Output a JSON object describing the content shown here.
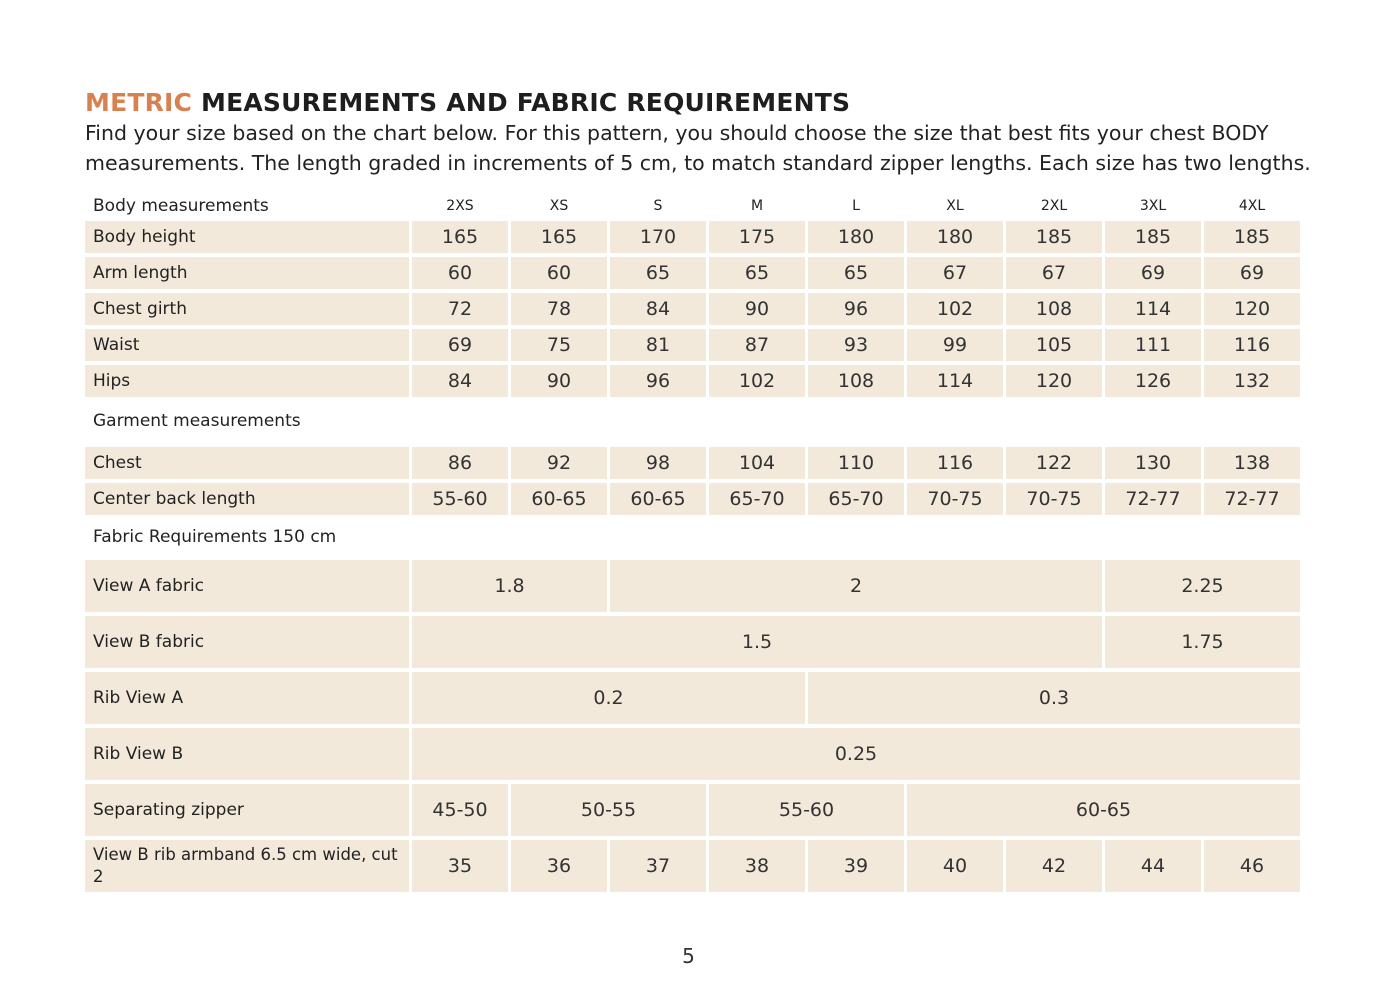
{
  "title": {
    "accent": "METRIC",
    "rest": "MEASUREMENTS AND FABRIC REQUIREMENTS"
  },
  "intro": "Find your size based on the chart below. For this pattern, you should choose the size that best fits your chest BODY measurements. The length graded in increments of 5 cm, to match standard zipper lengths. Each size has two lengths.",
  "colors": {
    "accent": "#d9804f",
    "cell_background": "#f2e9da"
  },
  "sizes": [
    "2XS",
    "XS",
    "S",
    "M",
    "L",
    "XL",
    "2XL",
    "3XL",
    "4XL"
  ],
  "body": {
    "heading": "Body measurements",
    "rows": [
      {
        "label": "Body height",
        "cells": [
          {
            "v": "165",
            "span": 1
          },
          {
            "v": "165",
            "span": 1
          },
          {
            "v": "170",
            "span": 1
          },
          {
            "v": "175",
            "span": 1
          },
          {
            "v": "180",
            "span": 1
          },
          {
            "v": "180",
            "span": 1
          },
          {
            "v": "185",
            "span": 1
          },
          {
            "v": "185",
            "span": 1
          },
          {
            "v": "185",
            "span": 1
          }
        ]
      },
      {
        "label": "Arm length",
        "cells": [
          {
            "v": "60",
            "span": 1
          },
          {
            "v": "60",
            "span": 1
          },
          {
            "v": "65",
            "span": 1
          },
          {
            "v": "65",
            "span": 1
          },
          {
            "v": "65",
            "span": 1
          },
          {
            "v": "67",
            "span": 1
          },
          {
            "v": "67",
            "span": 1
          },
          {
            "v": "69",
            "span": 1
          },
          {
            "v": "69",
            "span": 1
          }
        ]
      },
      {
        "label": "Chest girth",
        "cells": [
          {
            "v": "72",
            "span": 1
          },
          {
            "v": "78",
            "span": 1
          },
          {
            "v": "84",
            "span": 1
          },
          {
            "v": "90",
            "span": 1
          },
          {
            "v": "96",
            "span": 1
          },
          {
            "v": "102",
            "span": 1
          },
          {
            "v": "108",
            "span": 1
          },
          {
            "v": "114",
            "span": 1
          },
          {
            "v": "120",
            "span": 1
          }
        ]
      },
      {
        "label": "Waist",
        "cells": [
          {
            "v": "69",
            "span": 1
          },
          {
            "v": "75",
            "span": 1
          },
          {
            "v": "81",
            "span": 1
          },
          {
            "v": "87",
            "span": 1
          },
          {
            "v": "93",
            "span": 1
          },
          {
            "v": "99",
            "span": 1
          },
          {
            "v": "105",
            "span": 1
          },
          {
            "v": "111",
            "span": 1
          },
          {
            "v": "116",
            "span": 1
          }
        ]
      },
      {
        "label": "Hips",
        "cells": [
          {
            "v": "84",
            "span": 1
          },
          {
            "v": "90",
            "span": 1
          },
          {
            "v": "96",
            "span": 1
          },
          {
            "v": "102",
            "span": 1
          },
          {
            "v": "108",
            "span": 1
          },
          {
            "v": "114",
            "span": 1
          },
          {
            "v": "120",
            "span": 1
          },
          {
            "v": "126",
            "span": 1
          },
          {
            "v": "132",
            "span": 1
          }
        ]
      }
    ]
  },
  "garment": {
    "heading": "Garment measurements",
    "rows": [
      {
        "label": "Chest",
        "cells": [
          {
            "v": "86",
            "span": 1
          },
          {
            "v": "92",
            "span": 1
          },
          {
            "v": "98",
            "span": 1
          },
          {
            "v": "104",
            "span": 1
          },
          {
            "v": "110",
            "span": 1
          },
          {
            "v": "116",
            "span": 1
          },
          {
            "v": "122",
            "span": 1
          },
          {
            "v": "130",
            "span": 1
          },
          {
            "v": "138",
            "span": 1
          }
        ]
      },
      {
        "label": "Center back length",
        "cells": [
          {
            "v": "55-60",
            "span": 1
          },
          {
            "v": "60-65",
            "span": 1
          },
          {
            "v": "60-65",
            "span": 1
          },
          {
            "v": "65-70",
            "span": 1
          },
          {
            "v": "65-70",
            "span": 1
          },
          {
            "v": "70-75",
            "span": 1
          },
          {
            "v": "70-75",
            "span": 1
          },
          {
            "v": "72-77",
            "span": 1
          },
          {
            "v": "72-77",
            "span": 1
          }
        ]
      }
    ]
  },
  "fabric": {
    "heading": "Fabric Requirements 150 cm",
    "rows": [
      {
        "label": "View A fabric",
        "cells": [
          {
            "v": "1.8",
            "span": 2
          },
          {
            "v": "2",
            "span": 5
          },
          {
            "v": "2.25",
            "span": 2
          }
        ]
      },
      {
        "label": "View B fabric",
        "cells": [
          {
            "v": "1.5",
            "span": 7
          },
          {
            "v": "1.75",
            "span": 2
          }
        ]
      },
      {
        "label": "Rib View A",
        "cells": [
          {
            "v": "0.2",
            "span": 4
          },
          {
            "v": "0.3",
            "span": 5
          }
        ]
      },
      {
        "label": "Rib View B",
        "cells": [
          {
            "v": "0.25",
            "span": 9
          }
        ]
      },
      {
        "label": "Separating zipper",
        "cells": [
          {
            "v": "45-50",
            "span": 1
          },
          {
            "v": "50-55",
            "span": 2
          },
          {
            "v": "55-60",
            "span": 2
          },
          {
            "v": "60-65",
            "span": 4
          }
        ]
      },
      {
        "label": "View B rib armband 6.5 cm  wide, cut 2",
        "cells": [
          {
            "v": "35",
            "span": 1
          },
          {
            "v": "36",
            "span": 1
          },
          {
            "v": "37",
            "span": 1
          },
          {
            "v": "38",
            "span": 1
          },
          {
            "v": "39",
            "span": 1
          },
          {
            "v": "40",
            "span": 1
          },
          {
            "v": "42",
            "span": 1
          },
          {
            "v": "44",
            "span": 1
          },
          {
            "v": "46",
            "span": 1
          }
        ]
      }
    ]
  },
  "page_number": "5"
}
